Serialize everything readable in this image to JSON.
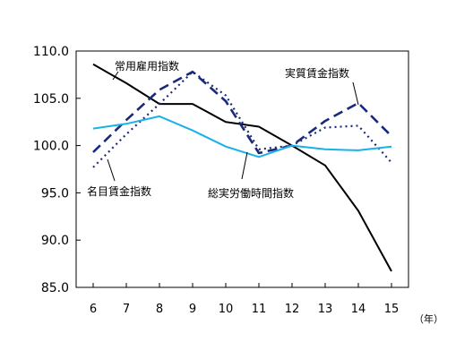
{
  "chart_data": {
    "type": "line",
    "x": [
      6,
      7,
      8,
      9,
      10,
      11,
      12,
      13,
      14,
      15
    ],
    "x_unit": "（年）",
    "ylim": [
      85.0,
      110.0
    ],
    "y_ticks": [
      "85.0",
      "90.0",
      "95.0",
      "100.0",
      "105.0",
      "110.0"
    ],
    "grid": false,
    "series": [
      {
        "name": "常用雇用指数",
        "color": "#000000",
        "style": "solid",
        "values": [
          108.6,
          106.6,
          104.4,
          104.4,
          102.5,
          102.0,
          100.0,
          97.9,
          93.1,
          86.7
        ]
      },
      {
        "name": "実質賃金指数",
        "color": "#1a2a7a",
        "style": "dashed",
        "values": [
          99.3,
          102.7,
          105.9,
          107.8,
          104.7,
          99.2,
          100.0,
          102.6,
          104.5,
          101.0
        ]
      },
      {
        "name": "名目賃金指数",
        "color": "#1a2a7a",
        "style": "dotted",
        "values": [
          97.7,
          101.2,
          104.4,
          107.8,
          105.3,
          99.6,
          100.0,
          101.9,
          102.1,
          98.2
        ]
      },
      {
        "name": "総実労働時間指数",
        "color": "#1ab0e8",
        "style": "solid",
        "values": [
          101.8,
          102.3,
          103.1,
          101.6,
          99.9,
          98.8,
          100.0,
          99.6,
          99.5,
          99.9
        ]
      }
    ],
    "annotations": [
      {
        "id": "ann-emp",
        "text": "常用雇用指数"
      },
      {
        "id": "ann-real",
        "text": "実質賃金指数"
      },
      {
        "id": "ann-nom",
        "text": "名目賃金指数"
      },
      {
        "id": "ann-hrs",
        "text": "総実労働時間指数"
      }
    ]
  }
}
